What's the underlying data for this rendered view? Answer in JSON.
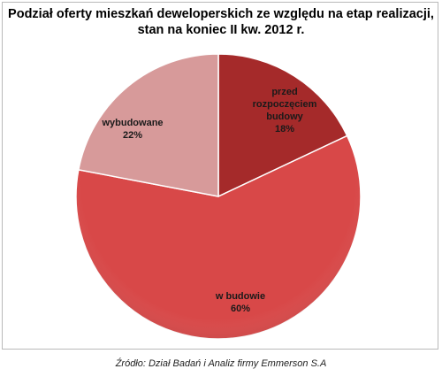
{
  "chart_data": {
    "type": "pie",
    "title_lines": [
      "Podział oferty mieszkań deweloperskich ze względu na etap realizacji,",
      "stan na koniec II kw. 2012 r."
    ],
    "slices": [
      {
        "label_lines": [
          "przed",
          "rozpoczęciem",
          "budowy"
        ],
        "value": 18,
        "value_label": "18%",
        "color": "#a52a2a"
      },
      {
        "label_lines": [
          "w budowie"
        ],
        "value": 60,
        "value_label": "60%",
        "color": "#d84848"
      },
      {
        "label_lines": [
          "wybudowane"
        ],
        "value": 22,
        "value_label": "22%",
        "color": "#d79a9a"
      }
    ],
    "legend": "none"
  },
  "source": "Źródło: Dział Badań i Analiz firmy Emmerson S.A"
}
